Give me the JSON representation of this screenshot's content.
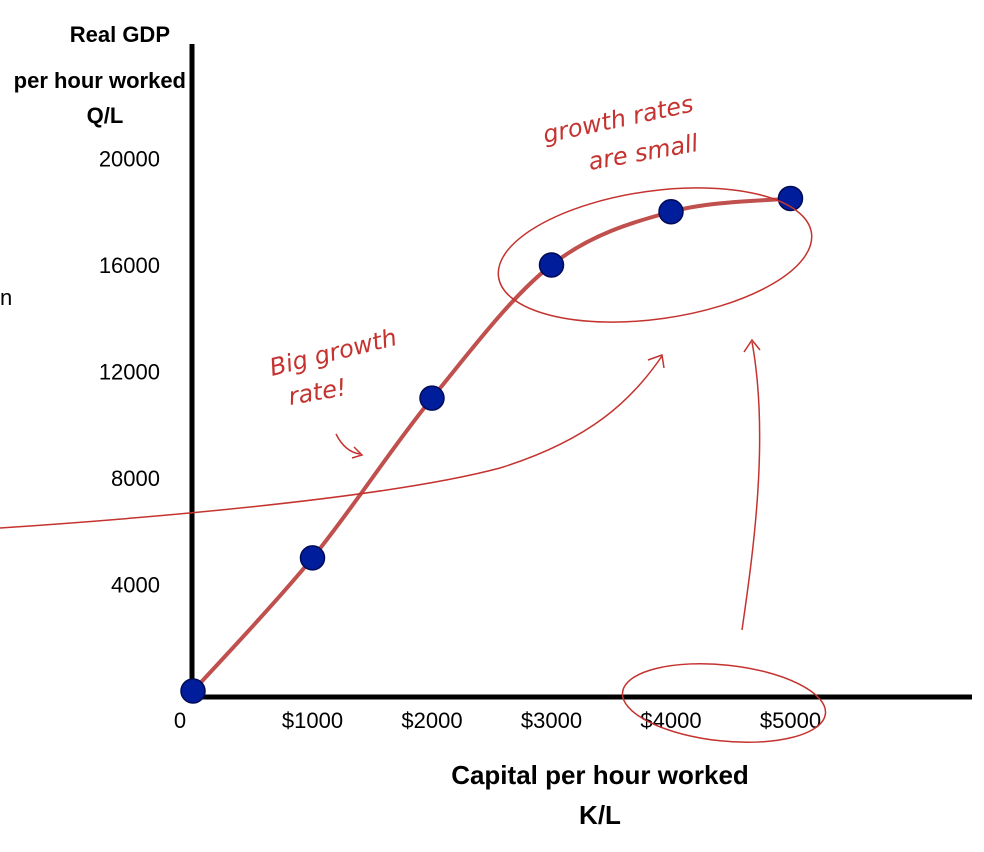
{
  "chart_data": {
    "type": "line",
    "ylabel": [
      "Real GDP",
      "per hour worked",
      "Q/L"
    ],
    "xlabel": [
      "Capital per hour worked",
      "K/L"
    ],
    "x_tick_labels": [
      "0",
      "$1000",
      "$2000",
      "$3000",
      "$4000",
      "$5000"
    ],
    "y_tick_labels": [
      "4000",
      "8000",
      "12000",
      "16000",
      "20000"
    ],
    "x": [
      0,
      1000,
      2000,
      3000,
      4000,
      5000
    ],
    "y": [
      0,
      5000,
      11000,
      16000,
      18000,
      18500
    ],
    "xlim": [
      0,
      6200
    ],
    "ylim": [
      0,
      22000
    ],
    "grid": false,
    "colors": {
      "curve": "#c0504d",
      "points": "#001e9b",
      "annotation": "#c4332f"
    },
    "annotations": {
      "small_growth": [
        "growth rates",
        "are small"
      ],
      "big_growth": [
        "Big growth",
        "rate!"
      ]
    },
    "stray_text": "n"
  }
}
